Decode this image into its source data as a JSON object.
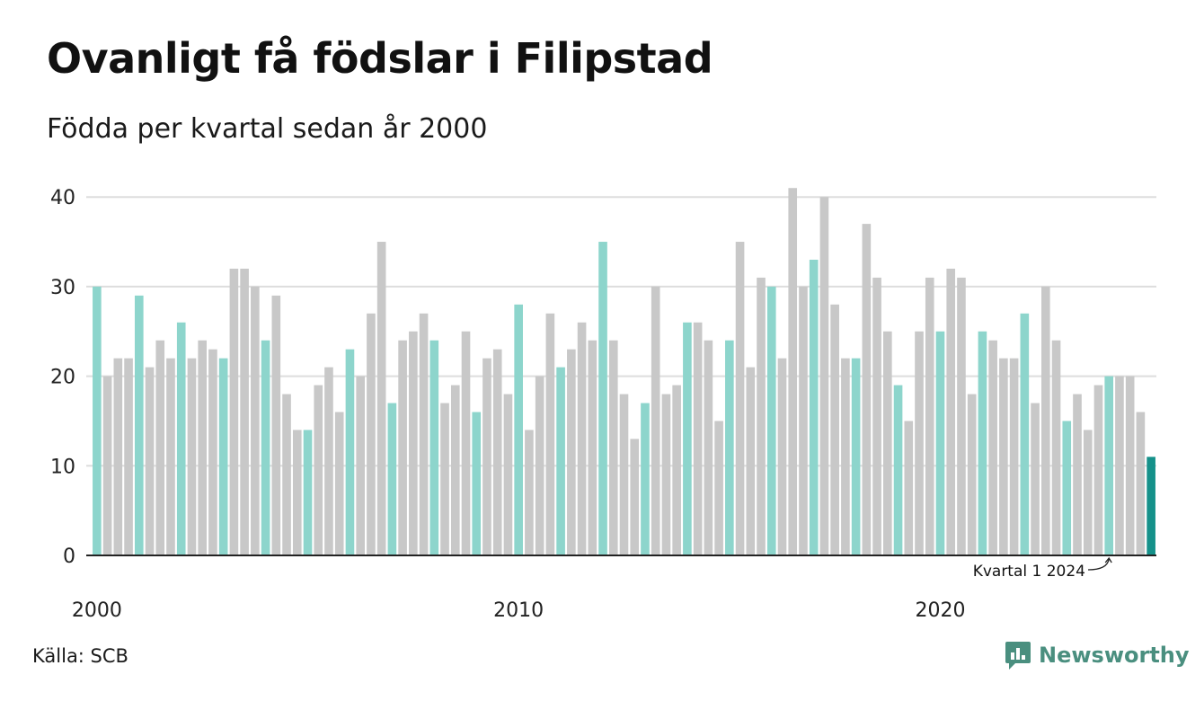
{
  "title": "Ovanligt få födslar i Filipstad",
  "subtitle": "Födda per kvartal sedan år 2000",
  "source": "Källa: SCB",
  "brand": "Newsworthy",
  "colors": {
    "q1": "#8dd5cc",
    "other": "#c8c8c8",
    "latest": "#15918a",
    "grid": "#dddddd",
    "axis": "#222222",
    "brand": "#4a8f7f"
  },
  "chart_data": {
    "type": "bar",
    "x_start": "2000 Q1",
    "period": "quarter",
    "highlight": "quarter 1 of each year",
    "values": [
      30,
      20,
      22,
      22,
      29,
      21,
      24,
      22,
      26,
      22,
      24,
      23,
      22,
      32,
      32,
      30,
      24,
      29,
      18,
      14,
      14,
      19,
      21,
      16,
      23,
      20,
      27,
      35,
      17,
      24,
      25,
      27,
      24,
      17,
      19,
      25,
      16,
      22,
      23,
      18,
      28,
      14,
      20,
      27,
      21,
      23,
      26,
      24,
      35,
      24,
      18,
      13,
      17,
      30,
      18,
      19,
      26,
      26,
      24,
      15,
      24,
      35,
      21,
      31,
      30,
      22,
      41,
      30,
      33,
      40,
      28,
      22,
      22,
      37,
      31,
      25,
      19,
      15,
      25,
      31,
      25,
      32,
      31,
      18,
      25,
      24,
      22,
      22,
      27,
      17,
      30,
      24,
      15,
      18,
      14,
      19,
      20,
      20,
      20,
      16,
      11
    ],
    "y_ticks": [
      0,
      10,
      20,
      30,
      40
    ],
    "x_ticks": [
      "2000",
      "2010",
      "2020"
    ],
    "ylim": [
      0,
      42
    ],
    "annotation": "Kvartal 1 2024",
    "grid": true
  }
}
